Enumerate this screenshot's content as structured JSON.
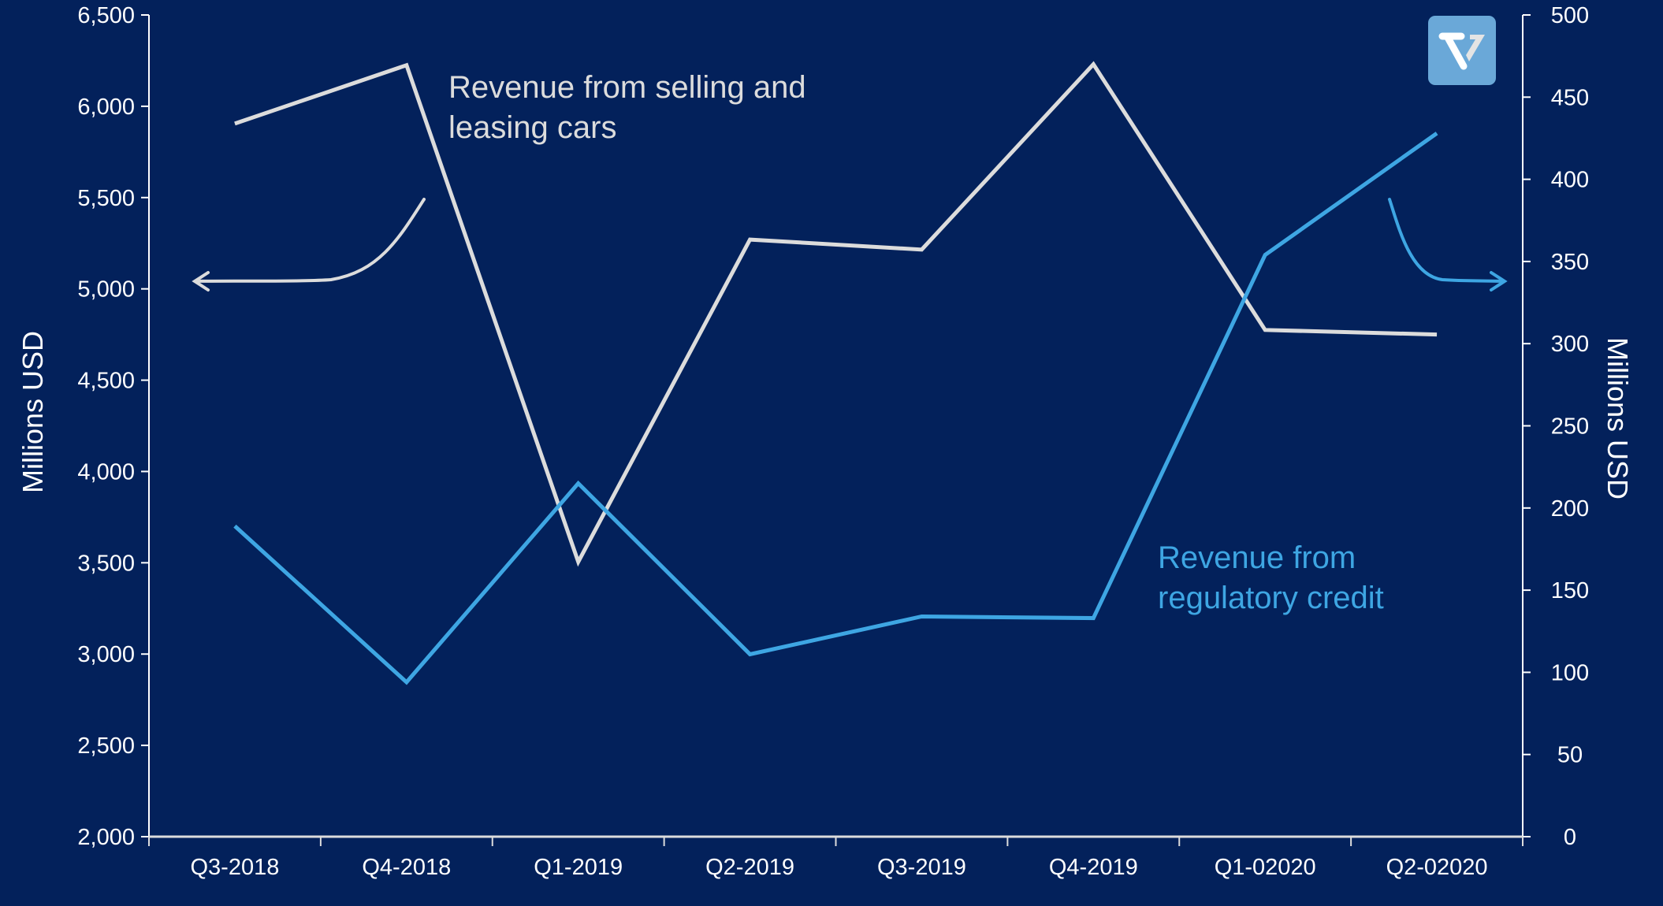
{
  "chart_data": {
    "type": "line",
    "title": "",
    "categories": [
      "Q3-2018",
      "Q4-2018",
      "Q1-2019",
      "Q2-2019",
      "Q3-2019",
      "Q4-2019",
      "Q1-02020",
      "Q2-02020"
    ],
    "series": [
      {
        "name": "Revenue from selling and leasing cars",
        "axis": "left",
        "color": "#dcdcdc",
        "values": [
          5905,
          6225,
          3505,
          5270,
          5215,
          6230,
          4775,
          4750
        ]
      },
      {
        "name": "Revenue from regulatory credit",
        "axis": "right",
        "color": "#3ea6e3",
        "values": [
          189,
          94,
          215,
          111,
          134,
          133,
          354,
          428
        ]
      }
    ],
    "ylabel": "Millions USD",
    "ylabel_right": "Millions USD",
    "ylim": [
      2000,
      6500
    ],
    "ylim_right": [
      0,
      500
    ],
    "yticks": [
      "2,000",
      "2,500",
      "3,000",
      "3,500",
      "4,000",
      "4,500",
      "5,000",
      "5,500",
      "6,000",
      "6,500"
    ],
    "yticks_right": [
      "0",
      "50",
      "100",
      "150",
      "200",
      "250",
      "300",
      "350",
      "400",
      "450",
      "500"
    ],
    "annotations": {
      "left_line1": "Revenue from selling and",
      "left_line2": "leasing cars",
      "right_line1": "Revenue from",
      "right_line2": "regulatory credit"
    },
    "grid": false,
    "legend": "none"
  },
  "colors": {
    "background": "#03215b",
    "logo": "#6aa8d8"
  }
}
